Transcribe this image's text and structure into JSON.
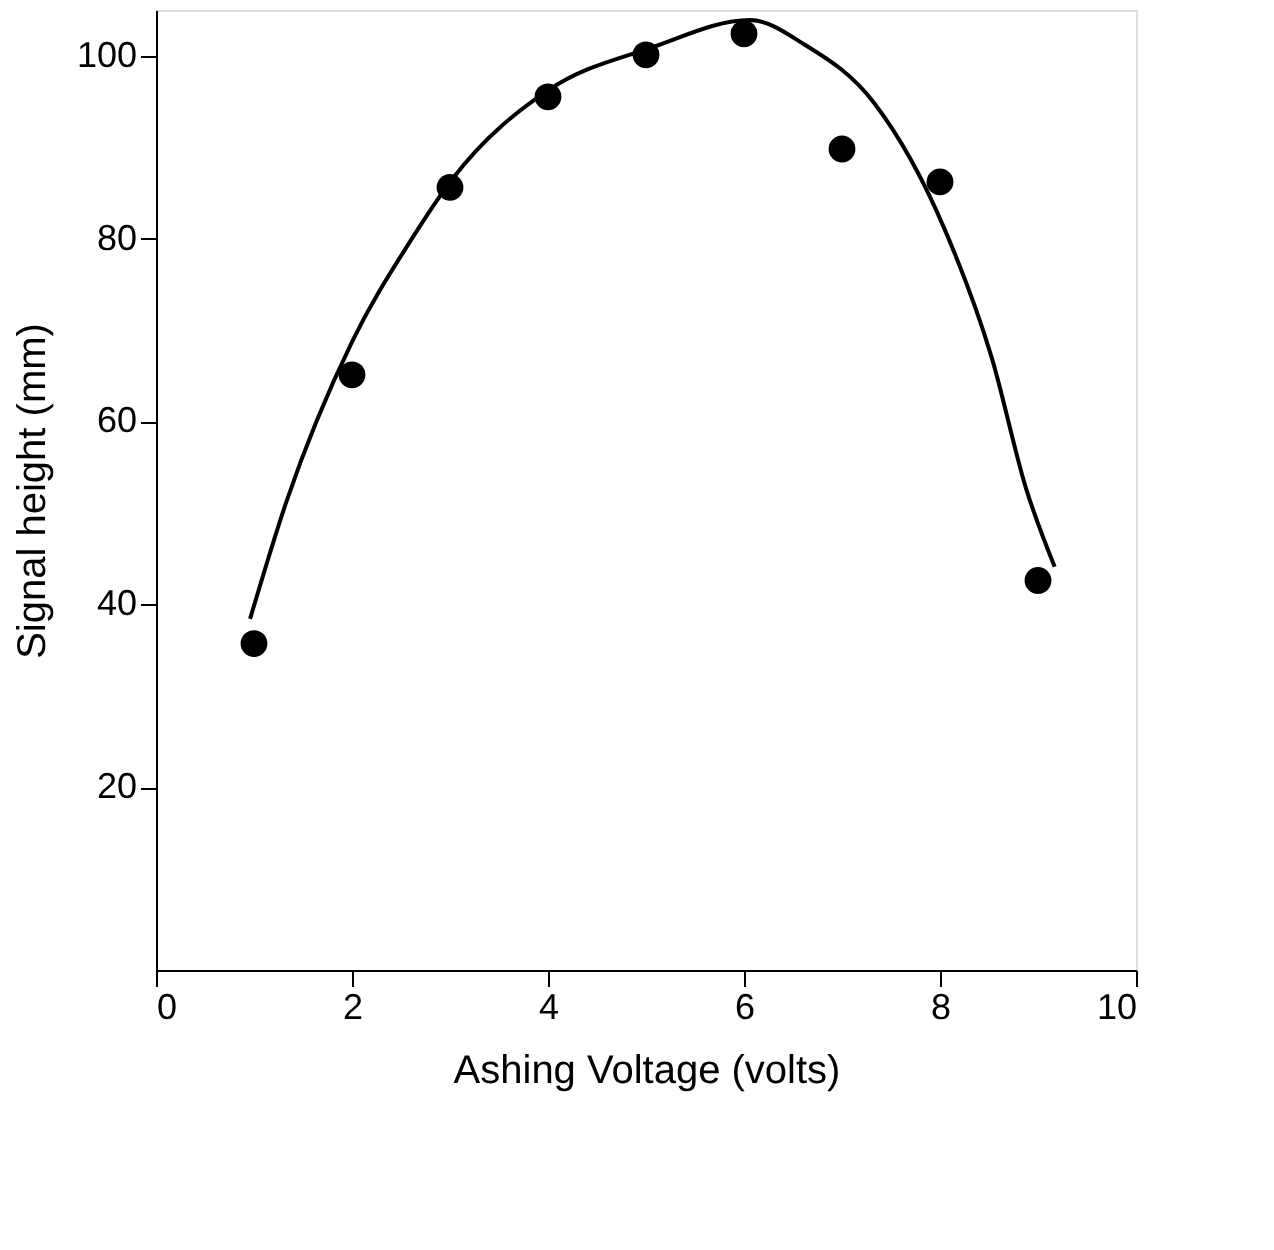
{
  "chart_data": {
    "type": "scatter",
    "xlabel": "Ashing Voltage (volts)",
    "ylabel": "Signal height (mm)",
    "xlim": [
      0,
      10
    ],
    "ylim": [
      0,
      105
    ],
    "xticks": [
      0,
      2,
      4,
      6,
      8,
      10
    ],
    "yticks": [
      20,
      40,
      60,
      80,
      100
    ],
    "grid": false,
    "legend": false,
    "marker": "circle",
    "series": [
      {
        "color": "#000000",
        "x": [
          1,
          2,
          3,
          4,
          5,
          6,
          7,
          8,
          9
        ],
        "values": [
          35.7,
          65.1,
          85.6,
          95.5,
          100.1,
          102.4,
          89.8,
          86.2,
          42.6
        ]
      },
      {
        "type": "line",
        "color": "#000000",
        "marker": "none",
        "line_style": "solid",
        "x": [
          0.96,
          1.33,
          2,
          2.6,
          3.03,
          4,
          5.06,
          6.06,
          6.62,
          7.33,
          8.04,
          8.53,
          8.88,
          9.17
        ],
        "values": [
          38.4,
          51.2,
          68.7,
          79.8,
          86.6,
          96.2,
          100.9,
          103.9,
          101.2,
          94.8,
          81.2,
          66.9,
          52.6,
          44.1
        ]
      }
    ]
  }
}
